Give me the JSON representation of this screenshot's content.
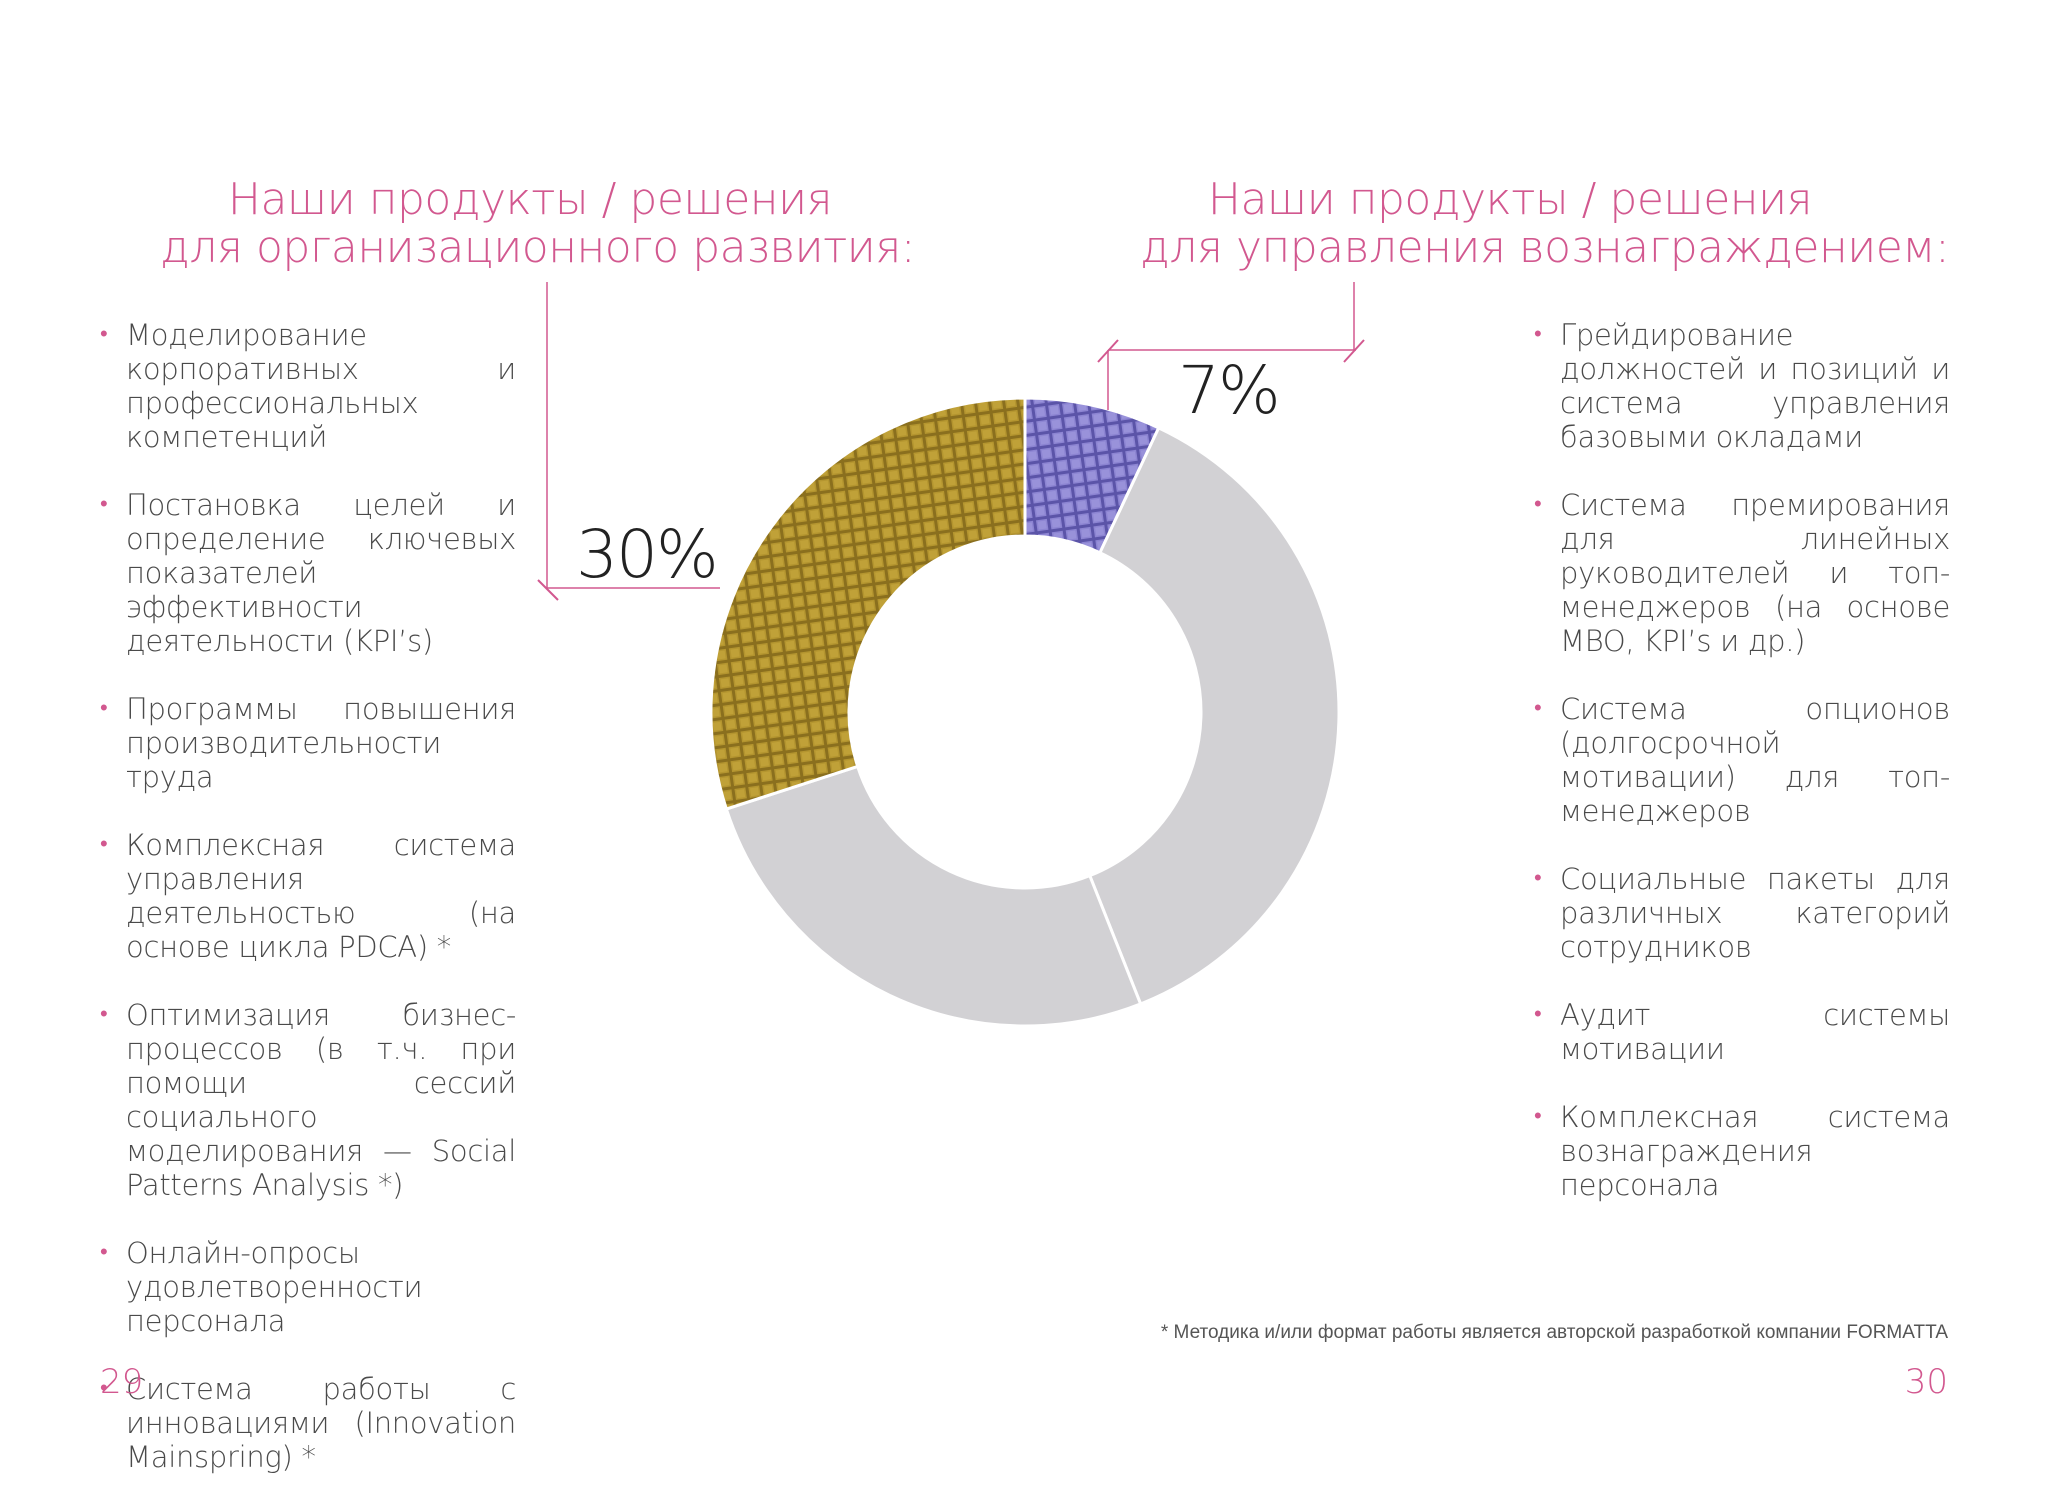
{
  "left_heading": {
    "line1": "Наши продукты / решения",
    "line2": "для организационного развития:"
  },
  "right_heading": {
    "line1": "Наши продукты / решения",
    "line2": "для управления вознаграждением:"
  },
  "left_items": [
    "Моделирование корпоративных и профессиональных компетенций",
    "Постановка целей и определение ключевых показателей эффективности деятельности (KPI’s)",
    "Программы повышения производительности труда",
    "Комплексная система управления деятельностью (на основе цикла PDCA) *",
    "Оптимизация бизнес-процессов (в т.ч. при помощи сессий социального моделирования — Social Patterns Analysis *)",
    "Онлайн-опросы удовлетворенности персонала",
    "Система работы с инновациями (Innovation Mainspring) *"
  ],
  "right_items": [
    "Грейдирование должностей и позиций и система управления базовыми окладами",
    "Система премирования для линейных руководителей и топ-менеджеров (на основе MBO, KPI’s и др.)",
    "Система опционов (долгосрочной мотивации) для топ-менеджеров",
    "Социальные пакеты для различных категорий сотрудников",
    "Аудит системы мотивации",
    "Комплексная система вознаграждения персонала"
  ],
  "footnote": "* Методика и/или формат работы является авторской разработкой компании FORMATTA",
  "page_left": "29",
  "page_right": "30",
  "chart_data": {
    "type": "pie",
    "donut": true,
    "slices": [
      {
        "label": "7%",
        "value": 7,
        "color": "#7b73c4",
        "pattern": "mosaic"
      },
      {
        "label": "",
        "value": 37,
        "color": "#d2d1d4"
      },
      {
        "label": "",
        "value": 26,
        "color": "#d2d1d4"
      },
      {
        "label": "30%",
        "value": 30,
        "color": "#a2852a",
        "pattern": "mosaic"
      }
    ]
  },
  "colors": {
    "accent": "#d2588f",
    "gold": "#a2852a",
    "purple": "#7b73c4",
    "grey": "#d2d1d4"
  }
}
